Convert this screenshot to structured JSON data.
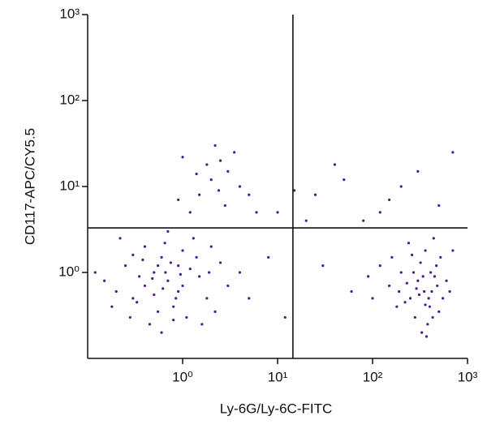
{
  "chart_data": {
    "type": "scatter",
    "x_label": "Ly-6G/Ly-6C-FITC",
    "y_label": "CD117-APC/CY5.5",
    "xscale": "log",
    "yscale": "log",
    "xlim": [
      0.1,
      1000
    ],
    "ylim": [
      0.1,
      1000
    ],
    "xticks": [
      {
        "value": 1,
        "label": "10⁰"
      },
      {
        "value": 10,
        "label": "10¹"
      },
      {
        "value": 100,
        "label": "10²"
      },
      {
        "value": 1000,
        "label": "10³"
      }
    ],
    "yticks": [
      {
        "value": 1,
        "label": "10⁰"
      },
      {
        "value": 10,
        "label": "10¹"
      },
      {
        "value": 100,
        "label": "10²"
      },
      {
        "value": 1000,
        "label": "10³"
      }
    ],
    "gates": {
      "x": 14.5,
      "y": 3.3
    },
    "color": "#4a1a8c",
    "x": [
      0.7,
      0.5,
      0.9,
      0.3,
      1.2,
      0.6,
      0.4,
      0.8,
      1.5,
      0.25,
      0.55,
      1.0,
      0.2,
      0.65,
      1.8,
      0.35,
      2.5,
      0.45,
      1.1,
      0.75,
      0.3,
      3.0,
      0.15,
      0.5,
      0.95,
      1.3,
      0.6,
      0.4,
      2.0,
      0.85,
      0.18,
      4.0,
      0.7,
      1.6,
      0.28,
      0.55,
      1.0,
      0.38,
      2.2,
      0.12,
      0.62,
      1.4,
      0.9,
      0.48,
      5.0,
      0.22,
      0.8,
      1.9,
      0.33,
      0.66,
      350,
      400,
      300,
      250,
      450,
      380,
      200,
      320,
      420,
      150,
      500,
      280,
      360,
      220,
      600,
      330,
      120,
      470,
      390,
      260,
      180,
      550,
      310,
      430,
      90,
      340,
      240,
      480,
      370,
      160,
      290,
      410,
      520,
      230,
      100,
      650,
      360,
      270,
      440,
      190,
      2.0,
      2.5,
      1.5,
      3.0,
      1.2,
      2.2,
      4.0,
      1.8,
      0.9,
      3.5,
      2.8,
      1.4,
      5.0,
      2.4,
      1.0,
      6.0,
      10,
      25,
      50,
      80,
      150,
      300,
      500,
      700,
      20,
      40,
      200,
      120,
      12,
      30,
      60,
      8,
      700,
      15
    ],
    "values": [
      0.8,
      1.0,
      0.6,
      0.5,
      1.1,
      1.5,
      0.7,
      0.4,
      0.9,
      1.2,
      0.35,
      1.8,
      0.6,
      2.2,
      0.5,
      0.9,
      1.3,
      0.25,
      0.3,
      1.3,
      1.6,
      0.7,
      0.8,
      0.55,
      0.95,
      2.5,
      0.2,
      2.0,
      2.0,
      0.5,
      0.4,
      1.0,
      3.0,
      0.25,
      0.3,
      1.2,
      0.7,
      1.4,
      0.35,
      1.0,
      0.65,
      1.5,
      1.2,
      0.85,
      0.5,
      2.5,
      0.28,
      1.0,
      0.45,
      1.0,
      0.6,
      0.4,
      0.8,
      0.5,
      0.9,
      0.25,
      1.0,
      1.3,
      0.6,
      0.7,
      0.35,
      0.3,
      1.8,
      0.45,
      0.8,
      0.2,
      1.2,
      1.2,
      0.5,
      1.6,
      0.4,
      0.5,
      0.55,
      0.3,
      0.9,
      0.9,
      2.2,
      0.7,
      0.18,
      1.5,
      0.65,
      1.0,
      1.5,
      0.75,
      0.5,
      0.6,
      0.42,
      1.0,
      2.5,
      0.6,
      12,
      20,
      8,
      15,
      5,
      30,
      10,
      18,
      7,
      25,
      6,
      14,
      8,
      9,
      22,
      5,
      5,
      8,
      12,
      4,
      7,
      15,
      6,
      25,
      4,
      18,
      10,
      5,
      0.3,
      1.2,
      0.6,
      1.5,
      1.8,
      9
    ]
  }
}
